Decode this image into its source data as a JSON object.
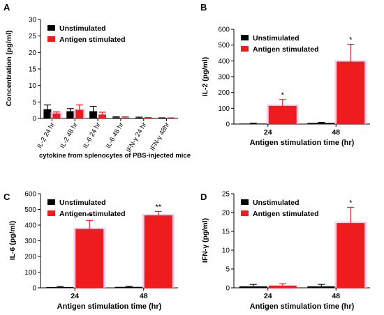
{
  "colors": {
    "unstimulated": "#000000",
    "antigen": "#ee1c1c",
    "antigen_glow": "#f4b8e4",
    "axis": "#000000"
  },
  "chart_data": [
    {
      "panel": "A",
      "type": "bar",
      "title": "",
      "xlabel": "cytokine from splenocytes of PBS-injected mice",
      "ylabel": "Concentration (pg/ml)",
      "ylim": [
        0,
        30
      ],
      "yticks": [
        0,
        5,
        10,
        15,
        20,
        25,
        30
      ],
      "categories": [
        "IL-2 24 hr",
        "IL-2 48 hr",
        "IL-6 24 hr",
        "IL-6 48 hr",
        "IFN-γ 24 hr",
        "IFN-γ 48hr"
      ],
      "legend": [
        "Unstimulated",
        "Antigen stimulated"
      ],
      "legend_position": "top-left",
      "series": [
        {
          "name": "Unstimulated",
          "values": [
            2.8,
            2.2,
            2.2,
            0.3,
            0.2,
            0.1
          ],
          "errors": [
            1.3,
            0.8,
            1.5,
            0.2,
            0.2,
            0.1
          ]
        },
        {
          "name": "Antigen stimulated",
          "values": [
            1.5,
            2.6,
            1.2,
            0.3,
            0.2,
            0.1
          ],
          "errors": [
            0.5,
            1.5,
            0.7,
            0.2,
            0.1,
            0.1
          ]
        }
      ],
      "annotations": [
        {
          "text": "",
          "category": 0,
          "series": 1
        },
        {
          "text": "",
          "category": 0,
          "series": 1
        }
      ]
    },
    {
      "panel": "B",
      "type": "bar",
      "title": "",
      "xlabel": "Antigen stimulation time (hr)",
      "ylabel": "IL-2 (pg/ml)",
      "ylim": [
        0,
        600
      ],
      "yticks": [
        0,
        100,
        200,
        300,
        400,
        500,
        600
      ],
      "categories": [
        "24",
        "48"
      ],
      "legend": [
        "Unstimulated",
        "Antigen stimulated"
      ],
      "legend_position": "top-left",
      "series": [
        {
          "name": "Unstimulated",
          "values": [
            3,
            7
          ],
          "errors": [
            2,
            4
          ]
        },
        {
          "name": "Antigen stimulated",
          "values": [
            115,
            395
          ],
          "errors": [
            40,
            110
          ]
        }
      ],
      "annotations": [
        {
          "text": "*",
          "category": 0,
          "series": 1
        },
        {
          "text": "*",
          "category": 1,
          "series": 1
        }
      ]
    },
    {
      "panel": "C",
      "type": "bar",
      "title": "",
      "xlabel": "Antigen stimulation time (hr)",
      "ylabel": "IL-6 (pg/ml)",
      "ylim": [
        0,
        600
      ],
      "yticks": [
        0,
        100,
        200,
        300,
        400,
        500,
        600
      ],
      "categories": [
        "24",
        "48"
      ],
      "legend": [
        "Unstimulated",
        "Antigen stimulated"
      ],
      "legend_position": "top-left",
      "series": [
        {
          "name": "Unstimulated",
          "values": [
            5,
            6
          ],
          "errors": [
            3,
            4
          ]
        },
        {
          "name": "Antigen stimulated",
          "values": [
            375,
            462
          ],
          "errors": [
            55,
            25
          ]
        }
      ],
      "annotations": [
        {
          "text": "**",
          "category": 0,
          "series": 1
        },
        {
          "text": "**",
          "category": 1,
          "series": 1
        }
      ]
    },
    {
      "panel": "D",
      "type": "bar",
      "title": "",
      "xlabel": "Antigen stimulation time (hr)",
      "ylabel": "IFN-γ (pg/ml)",
      "ylim": [
        0,
        25
      ],
      "yticks": [
        0,
        5,
        10,
        15,
        20,
        25
      ],
      "categories": [
        "24",
        "48"
      ],
      "legend": [
        "Unstimulated",
        "Antigen stimulated"
      ],
      "legend_position": "top-left",
      "series": [
        {
          "name": "Unstimulated",
          "values": [
            0.4,
            0.4
          ],
          "errors": [
            0.5,
            0.5
          ]
        },
        {
          "name": "Antigen stimulated",
          "values": [
            0.6,
            17.2
          ],
          "errors": [
            0.5,
            4.2
          ]
        }
      ],
      "annotations": [
        {
          "text": "*",
          "category": 1,
          "series": 1
        }
      ]
    }
  ]
}
